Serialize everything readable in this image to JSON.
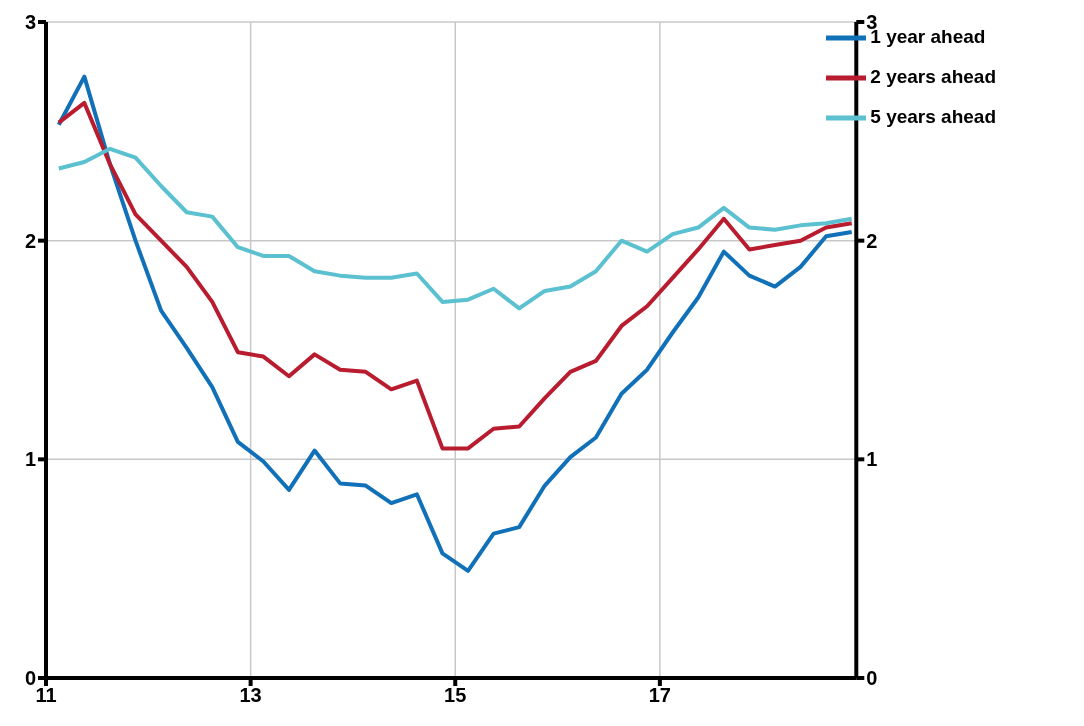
{
  "chart_data": {
    "type": "line",
    "x": [
      11.125,
      11.375,
      11.625,
      11.875,
      12.125,
      12.375,
      12.625,
      12.875,
      13.125,
      13.375,
      13.625,
      13.875,
      14.125,
      14.375,
      14.625,
      14.875,
      15.125,
      15.375,
      15.625,
      15.875,
      16.125,
      16.375,
      16.625,
      16.875,
      17.125,
      17.375,
      17.625,
      17.875,
      18.125,
      18.375,
      18.625,
      18.875
    ],
    "series": [
      {
        "name": "1 year ahead",
        "color": "#1070b8",
        "values": [
          2.53,
          2.75,
          2.35,
          2.0,
          1.68,
          1.51,
          1.33,
          1.08,
          0.99,
          0.86,
          1.04,
          0.89,
          0.88,
          0.8,
          0.84,
          0.57,
          0.49,
          0.66,
          0.69,
          0.88,
          1.01,
          1.1,
          1.3,
          1.41,
          1.58,
          1.74,
          1.95,
          1.84,
          1.79,
          1.88,
          2.02,
          2.04
        ]
      },
      {
        "name": "2 years ahead",
        "color": "#b81c2e",
        "values": [
          2.54,
          2.63,
          2.35,
          2.12,
          2.0,
          1.88,
          1.72,
          1.49,
          1.47,
          1.38,
          1.48,
          1.41,
          1.4,
          1.32,
          1.36,
          1.05,
          1.05,
          1.14,
          1.15,
          1.28,
          1.4,
          1.45,
          1.61,
          1.7,
          1.83,
          1.96,
          2.1,
          1.96,
          1.98,
          2.0,
          2.06,
          2.08
        ]
      },
      {
        "name": "5 years ahead",
        "color": "#5bc0d0",
        "values": [
          2.33,
          2.36,
          2.42,
          2.38,
          2.25,
          2.13,
          2.11,
          1.97,
          1.93,
          1.93,
          1.86,
          1.84,
          1.83,
          1.83,
          1.85,
          1.72,
          1.73,
          1.78,
          1.69,
          1.77,
          1.79,
          1.86,
          2.0,
          1.95,
          2.03,
          2.06,
          2.15,
          2.06,
          2.05,
          2.07,
          2.08,
          2.1
        ]
      }
    ],
    "xlim": [
      11,
      18.92
    ],
    "xticks": [
      11,
      13,
      15,
      17
    ],
    "ylim": [
      0,
      3
    ],
    "yticks": [
      0,
      1,
      2,
      3
    ],
    "y2lim": [
      0,
      3
    ],
    "y2ticks": [
      0,
      1,
      2,
      3
    ],
    "grid": true,
    "legend": "top right",
    "line_style": "solid"
  }
}
